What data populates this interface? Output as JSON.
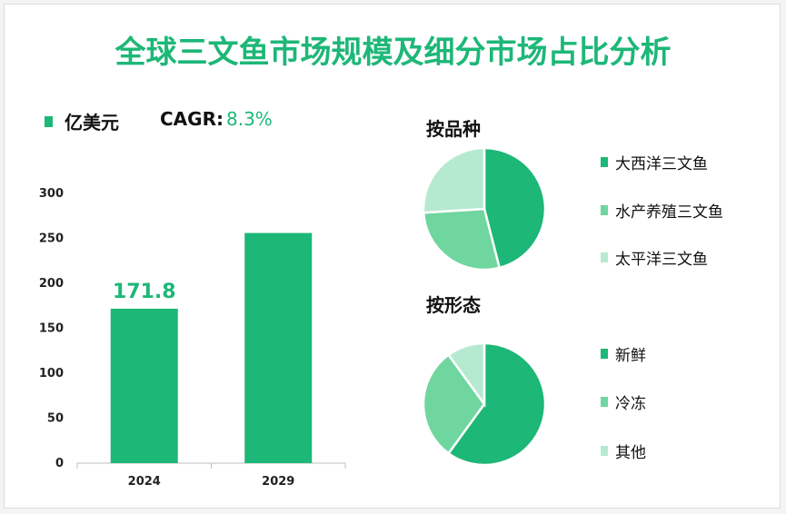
{
  "title": "全球三文鱼市场规模及细分市场占比分析",
  "unit_label": "亿美元",
  "cagr_label": "CAGR:",
  "cagr_value": "8.3%",
  "colors": {
    "accent": "#1db777",
    "mid": "#6fd69f",
    "light": "#b6ead0"
  },
  "chart_data": [
    {
      "type": "bar",
      "categories": [
        "2024",
        "2029"
      ],
      "values": [
        171.8,
        256
      ],
      "data_labels": [
        "171.8",
        ""
      ],
      "ylim": [
        0,
        300
      ],
      "yticks": [
        0,
        50,
        100,
        150,
        200,
        250,
        300
      ],
      "grid": false
    },
    {
      "type": "pie",
      "title": "按品种",
      "labels": [
        "大西洋三文鱼",
        "水产养殖三文鱼",
        "太平洋三文鱼"
      ],
      "values": [
        46,
        28,
        26
      ],
      "colors": [
        "#1db777",
        "#6fd69f",
        "#b6ead0"
      ]
    },
    {
      "type": "pie",
      "title": "按形态",
      "labels": [
        "新鲜",
        "冷冻",
        "其他"
      ],
      "values": [
        60,
        30,
        10
      ],
      "colors": [
        "#1db777",
        "#6fd69f",
        "#b6ead0"
      ]
    }
  ]
}
